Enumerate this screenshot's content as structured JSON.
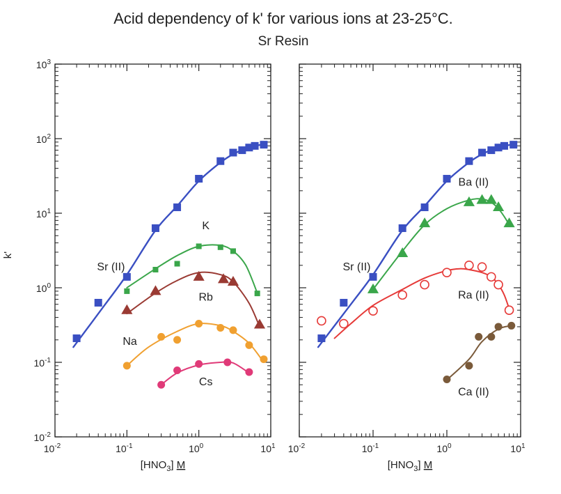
{
  "chart_data": {
    "title": "Acid dependency of k' for various ions at 23-25°C.",
    "subtitle": "Sr Resin",
    "type": "scatter",
    "xscale": "log",
    "yscale": "log",
    "xlim": [
      0.01,
      10
    ],
    "ylim": [
      0.01,
      1000
    ],
    "x_ticks": [
      {
        "base": "10",
        "exp": "-2"
      },
      {
        "base": "10",
        "exp": "-1"
      },
      {
        "base": "10",
        "exp": "0"
      },
      {
        "base": "10",
        "exp": "1"
      }
    ],
    "y_ticks": [
      {
        "base": "10",
        "exp": "-2"
      },
      {
        "base": "10",
        "exp": "-1"
      },
      {
        "base": "10",
        "exp": "0"
      },
      {
        "base": "10",
        "exp": "1"
      },
      {
        "base": "10",
        "exp": "2"
      },
      {
        "base": "10",
        "exp": "3"
      }
    ],
    "ylabel": "k'",
    "xlabel": {
      "prefix": "[HNO",
      "sub": "3",
      "suffix": "] ",
      "unit": "M"
    },
    "panels": [
      {
        "series": [
          {
            "name": "Sr (II)",
            "marker": "square",
            "color": "#3a4fc2",
            "x": [
              0.02,
              0.04,
              0.1,
              0.25,
              0.5,
              1.0,
              2.0,
              3.0,
              4.0,
              5.0,
              6.0,
              8.0
            ],
            "y": [
              0.21,
              0.63,
              1.4,
              6.3,
              12,
              29,
              50,
              65,
              70,
              76,
              80,
              83
            ],
            "fit_x": [
              0.018,
              0.05,
              0.1,
              0.25,
              0.5,
              1.0,
              2.0,
              3.0,
              4.0,
              5.0,
              6.0,
              8.0
            ],
            "fit_y": [
              0.16,
              0.6,
              1.5,
              5.9,
              12.5,
              27,
              48,
              62,
              70,
              76,
              80,
              84
            ]
          },
          {
            "name": "K",
            "marker": "square",
            "color": "#3aa64a",
            "x": [
              0.1,
              0.25,
              0.5,
              1.0,
              2.0,
              3.0,
              6.5
            ],
            "y": [
              0.9,
              1.75,
              2.1,
              3.6,
              3.5,
              3.1,
              0.84
            ],
            "fit_x": [
              0.1,
              0.25,
              0.5,
              1.0,
              2.0,
              3.0,
              4.5,
              6.5
            ],
            "fit_y": [
              1.0,
              1.8,
              2.7,
              3.6,
              3.7,
              3.1,
              2.0,
              0.85
            ]
          },
          {
            "name": "Rb",
            "marker": "triangle",
            "color": "#9a3a33",
            "x": [
              0.1,
              0.25,
              1.0,
              2.2,
              3.0,
              7.0
            ],
            "y": [
              0.5,
              0.9,
              1.4,
              1.3,
              1.2,
              0.32
            ],
            "fit_x": [
              0.1,
              0.25,
              0.5,
              1.0,
              2.0,
              3.0,
              5.0,
              7.0
            ],
            "fit_y": [
              0.45,
              0.85,
              1.25,
              1.6,
              1.5,
              1.2,
              0.62,
              0.3
            ]
          },
          {
            "name": "Na",
            "marker": "circle",
            "color": "#f0a030",
            "x": [
              0.1,
              0.3,
              0.5,
              1.0,
              2.0,
              3.0,
              5.0,
              8.0
            ],
            "y": [
              0.09,
              0.22,
              0.2,
              0.33,
              0.29,
              0.27,
              0.17,
              0.11
            ],
            "fit_x": [
              0.1,
              0.2,
              0.5,
              1.0,
              2.0,
              3.0,
              5.0,
              8.0
            ],
            "fit_y": [
              0.09,
              0.16,
              0.26,
              0.33,
              0.31,
              0.26,
              0.18,
              0.1
            ]
          },
          {
            "name": "Cs",
            "marker": "circle",
            "color": "#e03a78",
            "x": [
              0.3,
              0.5,
              1.0,
              2.5,
              5.0
            ],
            "y": [
              0.05,
              0.078,
              0.095,
              0.1,
              0.074
            ],
            "fit_x": [
              0.3,
              0.5,
              1.0,
              2.0,
              3.0,
              5.0
            ],
            "fit_y": [
              0.05,
              0.072,
              0.092,
              0.1,
              0.098,
              0.072
            ]
          }
        ],
        "labels": [
          {
            "text": "Sr (II)",
            "x": 0.06,
            "y": 1.9
          },
          {
            "text": "K",
            "x": 1.25,
            "y": 6.8
          },
          {
            "text": "Rb",
            "x": 1.25,
            "y": 0.75
          },
          {
            "text": "Na",
            "x": 0.11,
            "y": 0.19
          },
          {
            "text": "Cs",
            "x": 1.25,
            "y": 0.055
          }
        ]
      },
      {
        "series": [
          {
            "name": "Sr (II)",
            "marker": "square",
            "color": "#3a4fc2",
            "x": [
              0.02,
              0.04,
              0.1,
              0.25,
              0.5,
              1.0,
              2.0,
              3.0,
              4.0,
              5.0,
              6.0,
              8.0
            ],
            "y": [
              0.21,
              0.63,
              1.4,
              6.3,
              12,
              29,
              50,
              65,
              70,
              76,
              80,
              83
            ],
            "fit_x": [
              0.018,
              0.05,
              0.1,
              0.25,
              0.5,
              1.0,
              2.0,
              3.0,
              4.0,
              5.0,
              6.0,
              8.0
            ],
            "fit_y": [
              0.16,
              0.6,
              1.5,
              5.9,
              12.5,
              27,
              48,
              62,
              70,
              76,
              80,
              84
            ]
          },
          {
            "name": "Ba (II)",
            "marker": "triangle",
            "color": "#3aa64a",
            "x": [
              0.1,
              0.25,
              0.5,
              2.0,
              3.0,
              4.0,
              5.0,
              7.0
            ],
            "y": [
              0.95,
              2.9,
              7.3,
              14,
              15,
              15,
              12,
              7.3
            ],
            "fit_x": [
              0.1,
              0.25,
              0.5,
              1.0,
              2.0,
              3.0,
              4.0,
              5.0,
              6.0,
              7.0
            ],
            "fit_y": [
              0.95,
              3.1,
              7.0,
              11.5,
              15,
              15.5,
              14,
              11.5,
              9,
              7
            ]
          },
          {
            "name": "Ra (II)",
            "marker": "open-circle",
            "color": "#e63a38",
            "x": [
              0.02,
              0.04,
              0.1,
              0.25,
              0.5,
              1.0,
              2.0,
              3.0,
              4.0,
              5.0,
              7.0
            ],
            "y": [
              0.36,
              0.33,
              0.49,
              0.8,
              1.1,
              1.6,
              2.0,
              1.9,
              1.4,
              1.1,
              0.5
            ],
            "fit_x": [
              0.03,
              0.05,
              0.1,
              0.25,
              0.5,
              1.0,
              1.5,
              2.0,
              3.0,
              4.0,
              5.0,
              6.0,
              7.0
            ],
            "fit_y": [
              0.21,
              0.33,
              0.58,
              0.95,
              1.35,
              1.7,
              1.8,
              1.75,
              1.6,
              1.4,
              1.1,
              0.8,
              0.52
            ]
          },
          {
            "name": "Ca (II)",
            "marker": "circle",
            "color": "#7a5a3a",
            "x": [
              1.0,
              2.0,
              2.7,
              4.0,
              5.0,
              7.5
            ],
            "y": [
              0.059,
              0.09,
              0.22,
              0.22,
              0.3,
              0.31
            ],
            "fit_x": [
              1.0,
              2.0,
              3.0,
              5.0,
              7.5
            ],
            "fit_y": [
              0.058,
              0.11,
              0.19,
              0.28,
              0.31
            ]
          }
        ],
        "labels": [
          {
            "text": "Ba (II)",
            "x": 2.3,
            "y": 26
          },
          {
            "text": "Sr (II)",
            "x": 0.06,
            "y": 1.9
          },
          {
            "text": "Ra (II)",
            "x": 2.3,
            "y": 0.8
          },
          {
            "text": "Ca (II)",
            "x": 2.3,
            "y": 0.04
          }
        ]
      }
    ]
  }
}
